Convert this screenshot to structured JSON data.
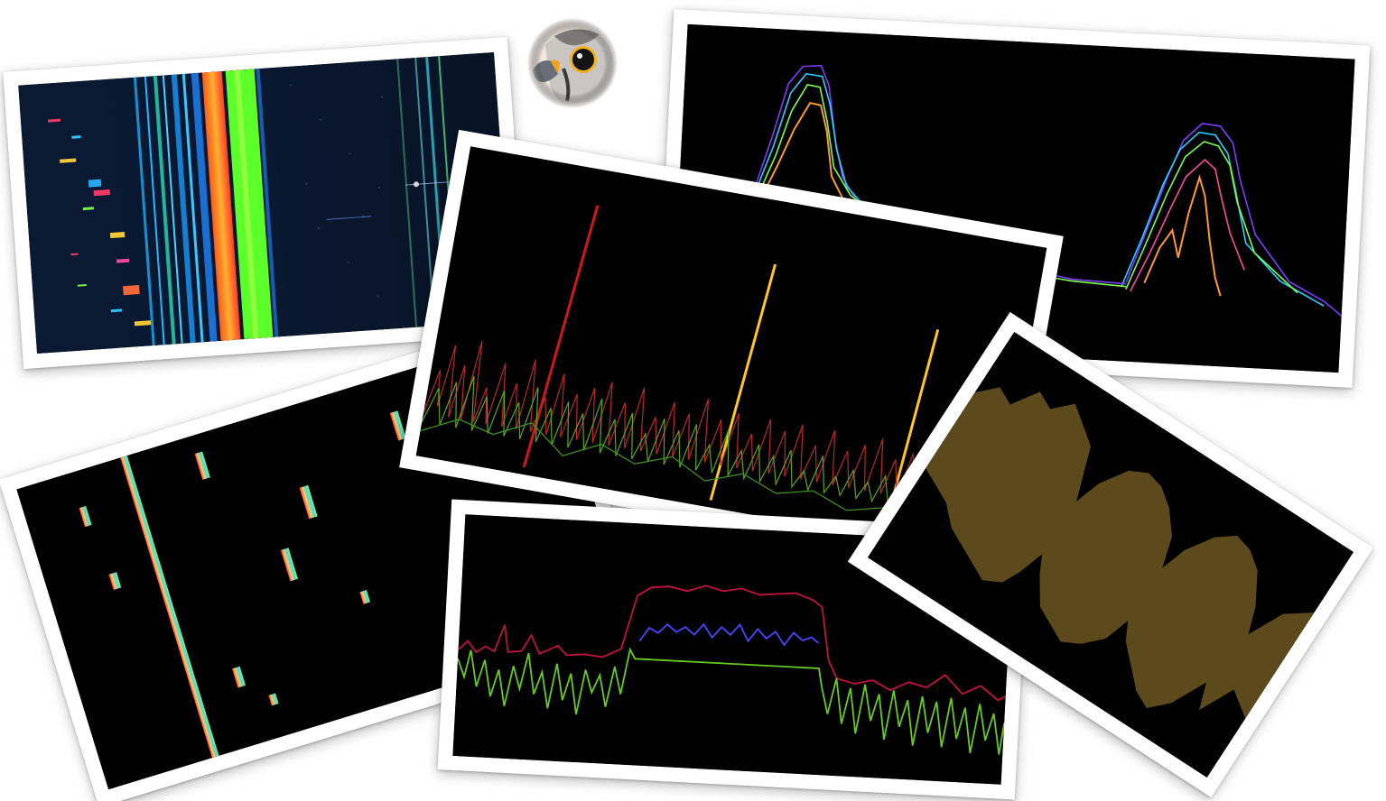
{
  "logo": {
    "icon": "falcon-head-icon"
  },
  "photos": [
    {
      "id": "waterfall-spectrogram",
      "kind": "spectrogram"
    },
    {
      "id": "multicolor-spectrum-peaks",
      "kind": "spectrum-overlay"
    },
    {
      "id": "falling-signals-waterfall",
      "kind": "waterfall"
    },
    {
      "id": "spiky-spectrum",
      "kind": "spectrum"
    },
    {
      "id": "flat-top-spectrum",
      "kind": "spectrum"
    },
    {
      "id": "yellow-envelope",
      "kind": "envelope"
    }
  ],
  "colors": {
    "paper": "#ffffff",
    "screen": "#000000",
    "orange": "#ff9a2e",
    "green": "#66cc22",
    "red": "#c0143c",
    "blue": "#4a44ff",
    "gold": "#5c4a1c"
  }
}
